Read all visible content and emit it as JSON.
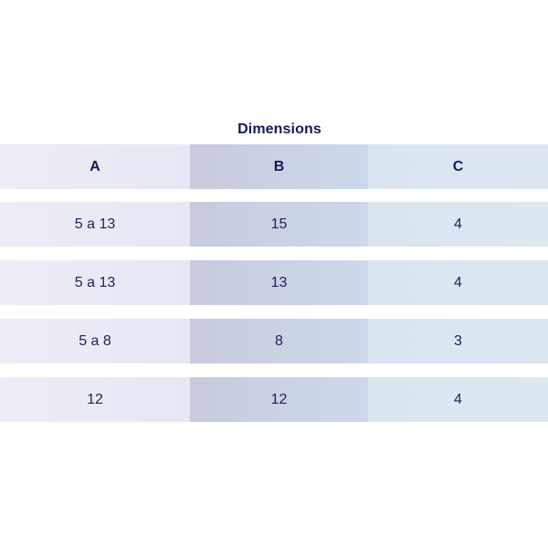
{
  "table": {
    "title": "Dimensions",
    "columns": [
      "A",
      "B",
      "C"
    ],
    "rows": [
      [
        "5 a 13",
        "15",
        "4"
      ],
      [
        "5 a 13",
        "13",
        "4"
      ],
      [
        "5 a 8",
        "8",
        "3"
      ],
      [
        "12",
        "12",
        "4"
      ]
    ]
  }
}
